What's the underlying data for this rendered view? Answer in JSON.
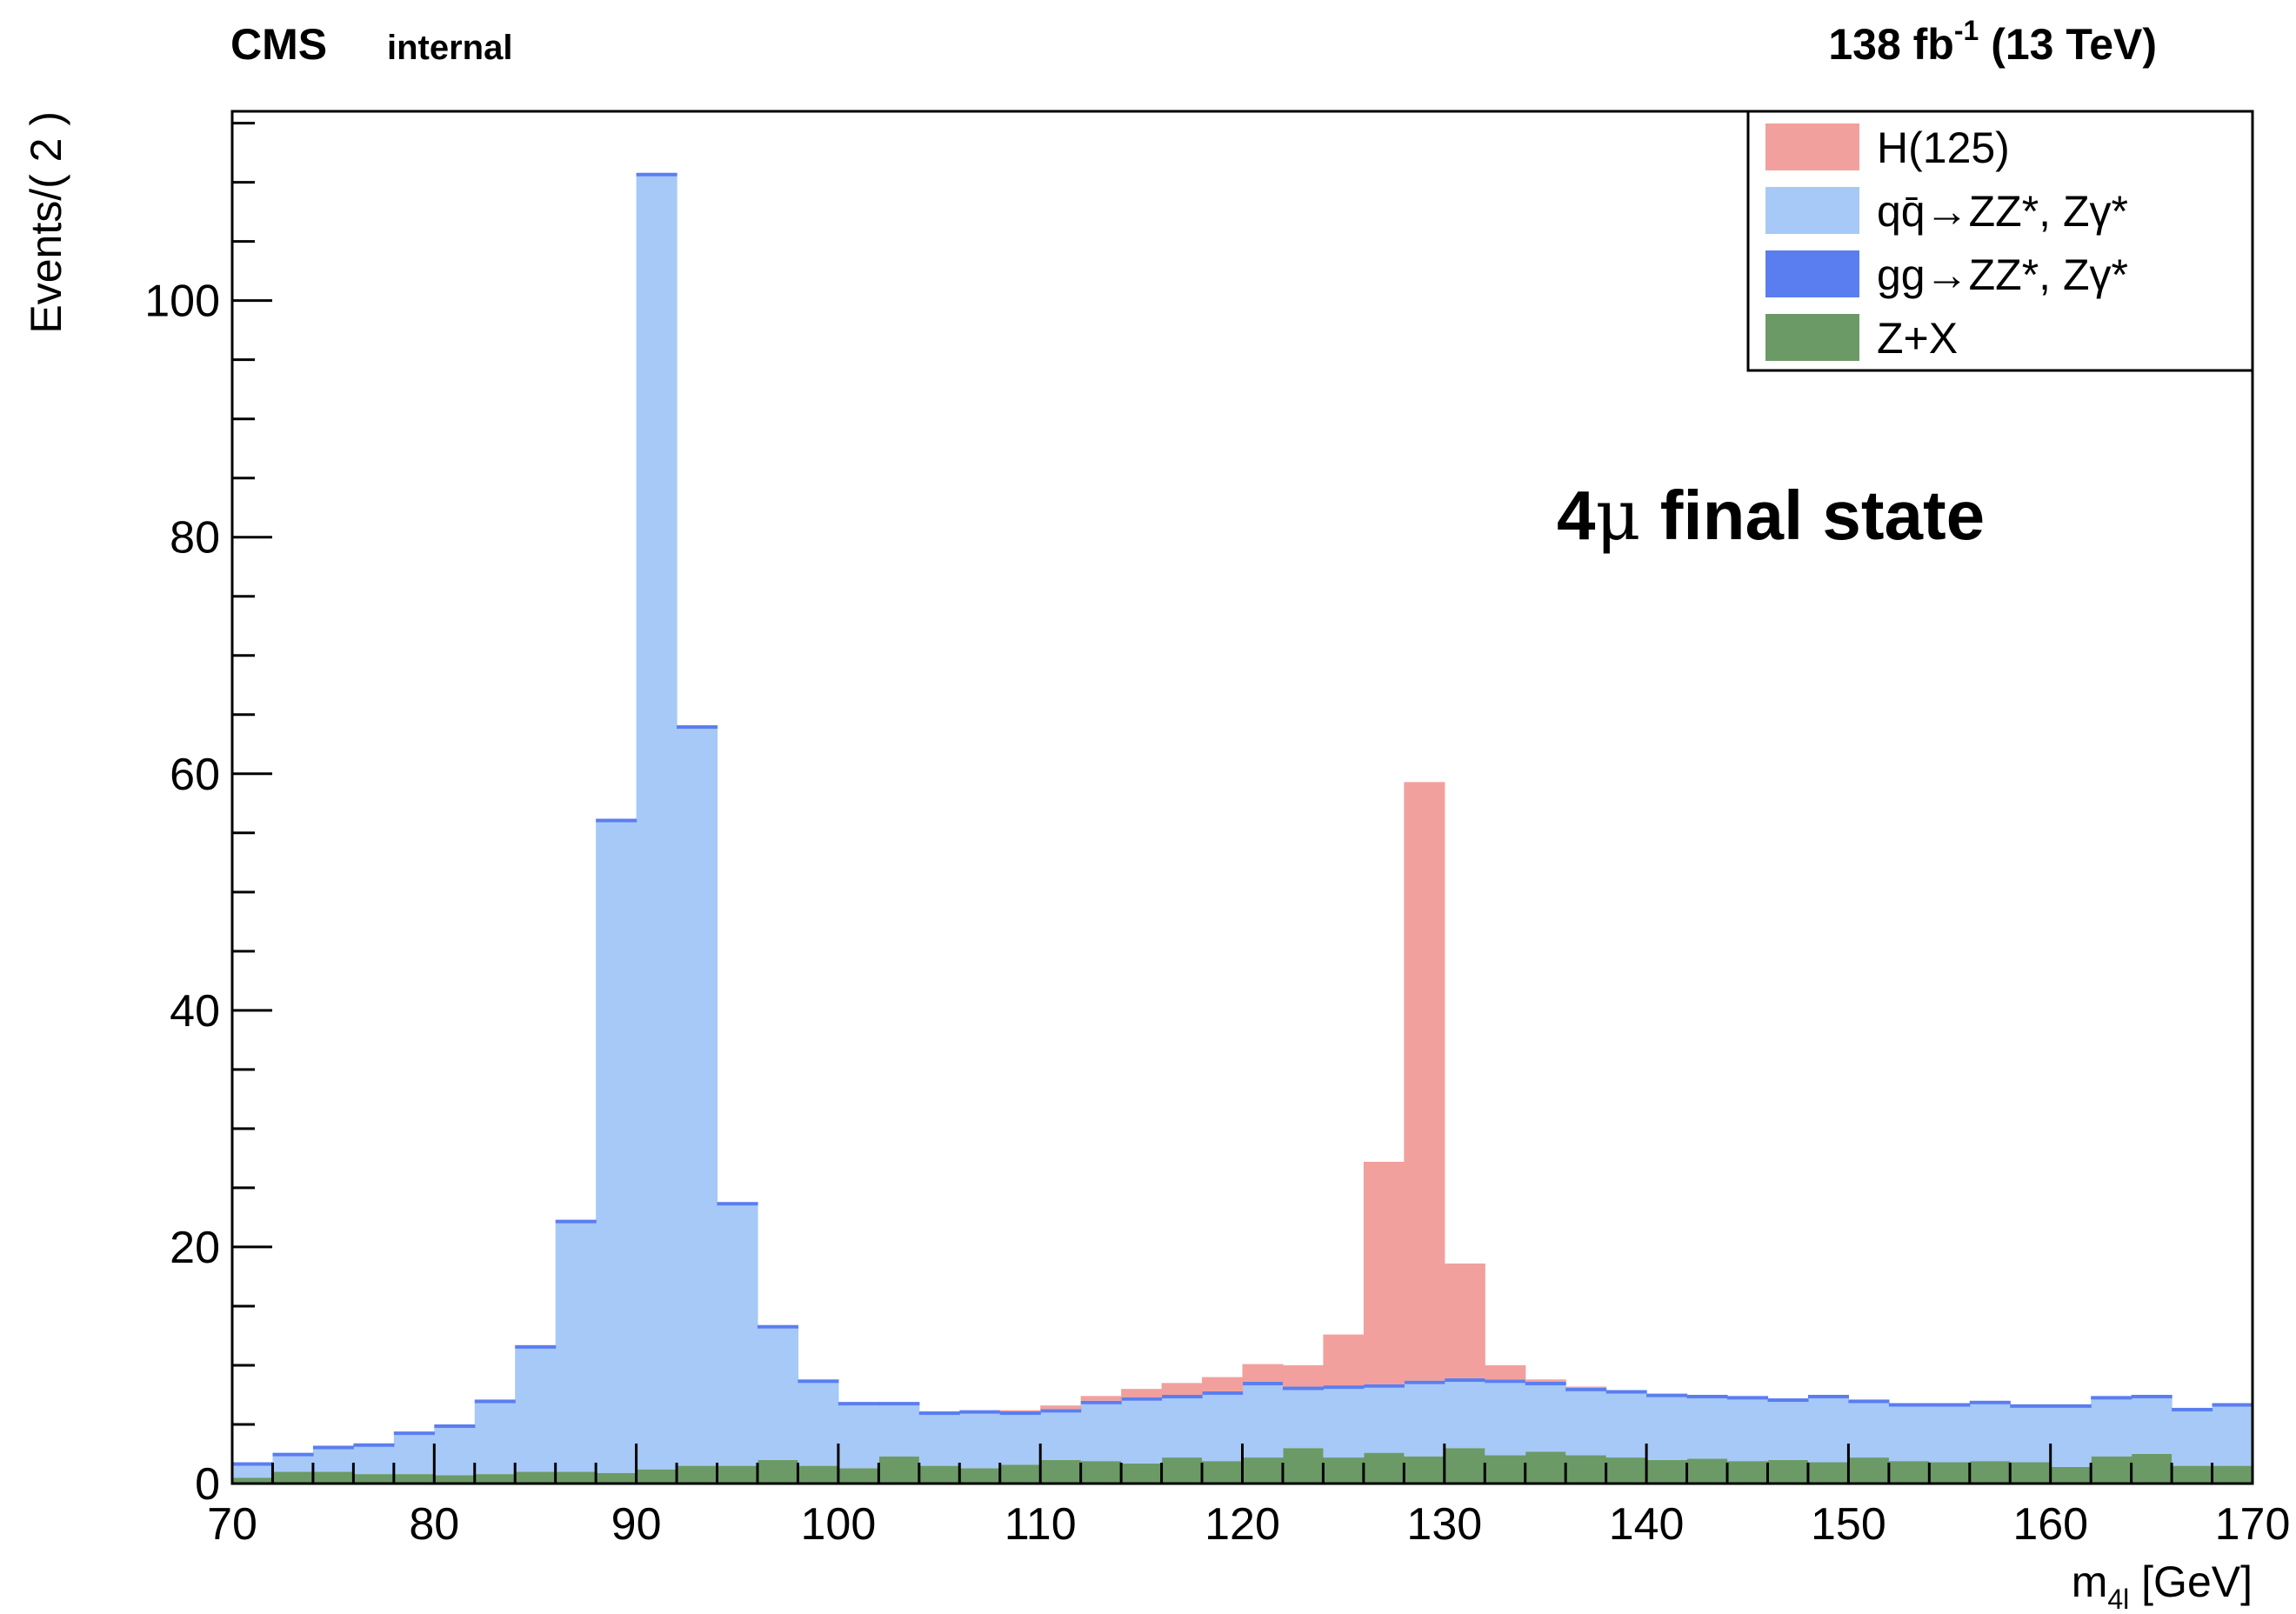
{
  "header": {
    "experiment": "CMS",
    "status": "internal",
    "lumi_value": "138 fb",
    "lumi_exp": "-1",
    "energy": " (13 TeV)"
  },
  "annotation": {
    "number": "4",
    "mu": "μ",
    "rest": " final state"
  },
  "chart_data": {
    "type": "bar",
    "subtype": "stacked-histogram",
    "xlabel_main": "m",
    "xlabel_sub": "4l",
    "xlabel_unit": " [GeV]",
    "ylabel": "Events/( 2 )",
    "xlim": [
      70,
      170
    ],
    "ylim": [
      0,
      116
    ],
    "bin_width": 2,
    "x_ticks": [
      "70",
      "80",
      "90",
      "100",
      "110",
      "120",
      "130",
      "140",
      "150",
      "160",
      "170"
    ],
    "y_ticks": [
      "0",
      "20",
      "40",
      "60",
      "80",
      "100"
    ],
    "grid": false,
    "legend_position": "top-right",
    "bin_edges_start": [
      70,
      72,
      74,
      76,
      78,
      80,
      82,
      84,
      86,
      88,
      90,
      92,
      94,
      96,
      98,
      100,
      102,
      104,
      106,
      108,
      110,
      112,
      114,
      116,
      118,
      120,
      122,
      124,
      126,
      128,
      130,
      132,
      134,
      136,
      138,
      140,
      142,
      144,
      146,
      148,
      150,
      152,
      154,
      156,
      158,
      160,
      162,
      164,
      166,
      168
    ],
    "series": [
      {
        "name": "Z+X",
        "color": "#6b9a66",
        "values": [
          0.5,
          1.0,
          1.0,
          0.8,
          0.8,
          0.7,
          0.8,
          1.0,
          1.0,
          0.9,
          1.2,
          1.5,
          1.5,
          2.0,
          1.5,
          1.3,
          2.3,
          1.5,
          1.3,
          1.6,
          2.0,
          1.9,
          1.7,
          2.2,
          1.9,
          2.2,
          3.0,
          2.2,
          2.6,
          2.3,
          3.0,
          2.4,
          2.7,
          2.4,
          2.2,
          2.0,
          2.1,
          1.9,
          2.0,
          1.8,
          2.2,
          1.9,
          1.8,
          1.9,
          1.8,
          1.4,
          2.3,
          2.5,
          1.5,
          1.5
        ]
      },
      {
        "name": "qq̄→ZZ*, Zγ*",
        "color": "#a6c9f7",
        "values": [
          1.0,
          1.3,
          1.9,
          2.3,
          3.3,
          4.0,
          6.0,
          10.4,
          21.0,
          55.0,
          109.3,
          62.3,
          22.0,
          11.1,
          7.0,
          5.3,
          4.3,
          4.3,
          4.6,
          4.2,
          4.0,
          4.8,
          5.3,
          5.0,
          5.6,
          6.1,
          4.9,
          5.8,
          5.5,
          6.1,
          5.6,
          6.1,
          5.6,
          5.4,
          5.4,
          5.3,
          5.1,
          5.2,
          4.9,
          5.4,
          4.6,
          4.6,
          4.7,
          4.8,
          4.6,
          5.0,
          4.8,
          4.7,
          4.6,
          5.0
        ]
      },
      {
        "name": "gg→ZZ*, Zγ*",
        "color": "#5a7ef0",
        "values": [
          0.3,
          0.3,
          0.3,
          0.3,
          0.3,
          0.3,
          0.3,
          0.3,
          0.3,
          0.3,
          0.3,
          0.3,
          0.3,
          0.3,
          0.3,
          0.3,
          0.3,
          0.3,
          0.3,
          0.3,
          0.3,
          0.3,
          0.3,
          0.3,
          0.3,
          0.3,
          0.3,
          0.3,
          0.3,
          0.3,
          0.3,
          0.3,
          0.3,
          0.3,
          0.3,
          0.3,
          0.3,
          0.3,
          0.3,
          0.3,
          0.3,
          0.3,
          0.3,
          0.3,
          0.3,
          0.3,
          0.3,
          0.3,
          0.3,
          0.3
        ]
      },
      {
        "name": "H(125)",
        "color": "#f2a09d",
        "values": [
          0,
          0,
          0,
          0,
          0,
          0,
          0,
          0,
          0,
          0,
          0,
          0,
          0,
          0,
          0,
          0,
          0,
          0,
          0,
          0.1,
          0.3,
          0.4,
          0.7,
          1.0,
          1.2,
          1.5,
          1.8,
          4.3,
          18.8,
          50.6,
          9.7,
          1.2,
          0.2,
          0.1,
          0,
          0,
          0,
          0,
          0,
          0,
          0,
          0,
          0,
          0,
          0,
          0,
          0,
          0,
          0,
          0
        ]
      }
    ]
  }
}
